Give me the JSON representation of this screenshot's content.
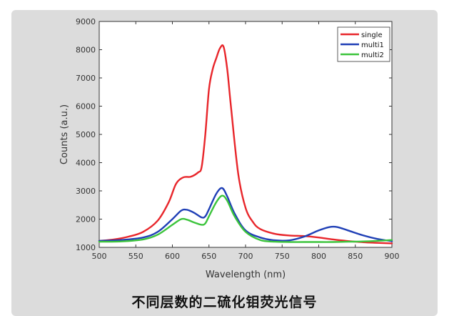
{
  "caption": "不同层数的二硫化钼荧光信号",
  "chart_data": {
    "type": "line",
    "xlabel": "Wavelength (nm)",
    "ylabel": "Counts (a.u.)",
    "xlim": [
      500,
      900
    ],
    "ylim": [
      1000,
      9000
    ],
    "xticks": [
      500,
      550,
      600,
      650,
      700,
      750,
      800,
      850,
      900
    ],
    "yticks": [
      1000,
      2000,
      3000,
      4000,
      5000,
      6000,
      7000,
      8000,
      9000
    ],
    "grid": false,
    "legend_position": "top-right",
    "series": [
      {
        "name": "single",
        "color": "#e8262b",
        "x": [
          500,
          520,
          540,
          560,
          580,
          595,
          605,
          615,
          625,
          635,
          640,
          645,
          650,
          655,
          660,
          665,
          670,
          675,
          680,
          690,
          700,
          710,
          720,
          740,
          760,
          780,
          800,
          820,
          850,
          880,
          900
        ],
        "y": [
          1230,
          1280,
          1380,
          1550,
          1950,
          2600,
          3250,
          3480,
          3500,
          3650,
          3850,
          5000,
          6600,
          7300,
          7700,
          8050,
          8100,
          7300,
          6000,
          3600,
          2400,
          1900,
          1650,
          1480,
          1420,
          1400,
          1350,
          1280,
          1200,
          1160,
          1140
        ]
      },
      {
        "name": "multi1",
        "color": "#1f3fb6",
        "x": [
          500,
          530,
          560,
          580,
          600,
          612,
          620,
          630,
          640,
          645,
          650,
          660,
          668,
          675,
          685,
          700,
          720,
          740,
          760,
          780,
          800,
          815,
          825,
          840,
          860,
          880,
          900
        ],
        "y": [
          1230,
          1260,
          1350,
          1550,
          2000,
          2300,
          2330,
          2220,
          2060,
          2100,
          2350,
          2900,
          3100,
          2800,
          2200,
          1600,
          1350,
          1250,
          1250,
          1380,
          1600,
          1720,
          1720,
          1600,
          1430,
          1300,
          1220
        ]
      },
      {
        "name": "multi2",
        "color": "#3cc43c",
        "x": [
          500,
          530,
          560,
          580,
          600,
          612,
          620,
          630,
          640,
          645,
          650,
          660,
          668,
          675,
          685,
          700,
          720,
          740,
          760,
          780,
          800,
          820,
          840,
          860,
          880,
          900
        ],
        "y": [
          1200,
          1210,
          1280,
          1450,
          1800,
          2000,
          1980,
          1880,
          1800,
          1850,
          2100,
          2600,
          2830,
          2650,
          2100,
          1550,
          1260,
          1200,
          1190,
          1190,
          1190,
          1190,
          1200,
          1210,
          1230,
          1260
        ]
      }
    ]
  }
}
